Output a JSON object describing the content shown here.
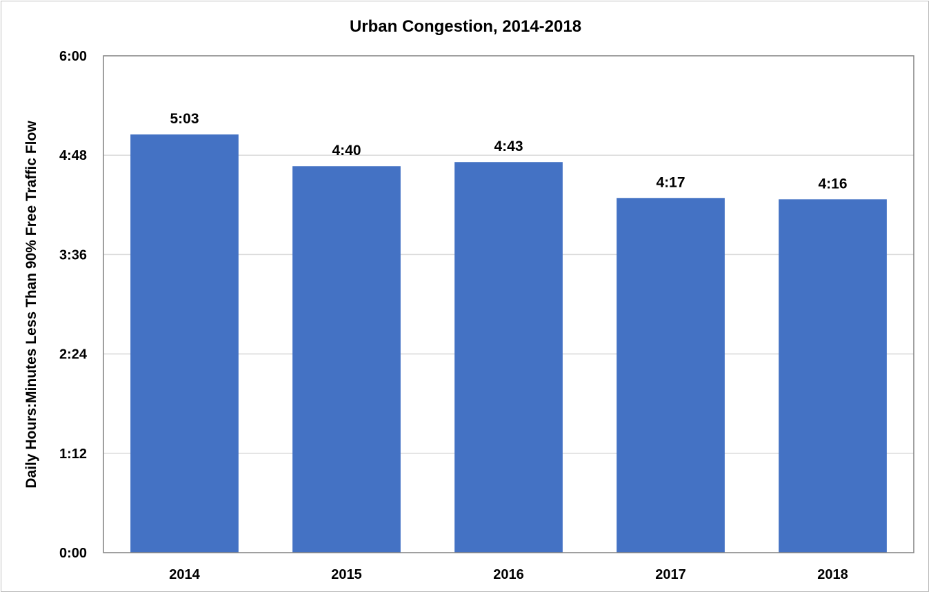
{
  "chart_data": {
    "type": "bar",
    "title": "Urban Congestion, 2014-2018",
    "xlabel": "",
    "ylabel": "Daily Hours:Minutes Less Than 90% Free Traffic Flow",
    "categories": [
      "2014",
      "2015",
      "2016",
      "2017",
      "2018"
    ],
    "values_minutes": [
      303,
      280,
      283,
      257,
      256
    ],
    "data_labels": [
      "5:03",
      "4:40",
      "4:43",
      "4:17",
      "4:16"
    ],
    "ylim_minutes": [
      0,
      360
    ],
    "yticks_minutes": [
      0,
      72,
      144,
      216,
      288,
      360
    ],
    "ytick_labels": [
      "0:00",
      "1:12",
      "2:24",
      "3:36",
      "4:48",
      "6:00"
    ],
    "grid": true,
    "bar_color": "#4472c4",
    "legend": "none"
  }
}
